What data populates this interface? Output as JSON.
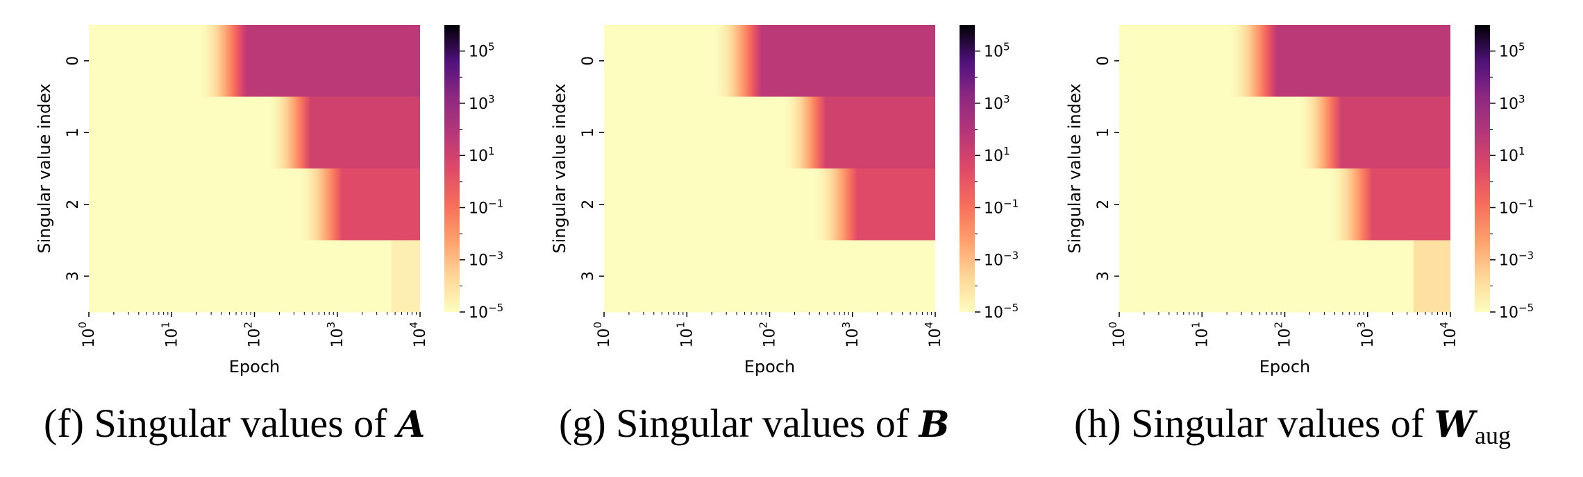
{
  "chart_data": [
    {
      "type": "heatmap",
      "caption": "(f) Singular values of ",
      "caption_symbol": "A",
      "caption_subscript": "",
      "xlabel": "Epoch",
      "ylabel": "Singular value index",
      "x_scale": "log",
      "xlim": [
        1,
        10000
      ],
      "x_ticks": [
        {
          "base": "10",
          "exp": "0"
        },
        {
          "base": "10",
          "exp": "1"
        },
        {
          "base": "10",
          "exp": "2"
        },
        {
          "base": "10",
          "exp": "3"
        },
        {
          "base": "10",
          "exp": "4"
        }
      ],
      "y_ticks": [
        "0",
        "1",
        "2",
        "3"
      ],
      "colormap": "magma_r",
      "color_scale": "log",
      "color_range": [
        1e-05,
        1000000
      ],
      "colorbar_ticks": [
        {
          "base": "10",
          "exp": "5",
          "value": 100000
        },
        {
          "base": "10",
          "exp": "3",
          "value": 1000
        },
        {
          "base": "10",
          "exp": "1",
          "value": 10
        },
        {
          "base": "10",
          "exp": "−1",
          "value": 0.1
        },
        {
          "base": "10",
          "exp": "−3",
          "value": 0.001
        },
        {
          "base": "10",
          "exp": "−5",
          "value": 1e-05
        }
      ],
      "rows": [
        {
          "index": 0,
          "initial": 1e-05,
          "transition_start_epoch": 22,
          "transition_end_epoch": 80,
          "final": 50,
          "late_value": 50,
          "late_epoch": null
        },
        {
          "index": 1,
          "initial": 1e-05,
          "transition_start_epoch": 150,
          "transition_end_epoch": 480,
          "final": 10,
          "late_value": 10,
          "late_epoch": null
        },
        {
          "index": 2,
          "initial": 1e-05,
          "transition_start_epoch": 350,
          "transition_end_epoch": 1150,
          "final": 3,
          "late_value": 3,
          "late_epoch": null
        },
        {
          "index": 3,
          "initial": 1e-05,
          "transition_start_epoch": null,
          "transition_end_epoch": null,
          "final": 1e-05,
          "late_value": 3e-05,
          "late_epoch": 4500
        }
      ]
    },
    {
      "type": "heatmap",
      "caption": "(g) Singular values of ",
      "caption_symbol": "B",
      "caption_subscript": "",
      "xlabel": "Epoch",
      "ylabel": "Singular value index",
      "x_scale": "log",
      "xlim": [
        1,
        10000
      ],
      "x_ticks": [
        {
          "base": "10",
          "exp": "0"
        },
        {
          "base": "10",
          "exp": "1"
        },
        {
          "base": "10",
          "exp": "2"
        },
        {
          "base": "10",
          "exp": "3"
        },
        {
          "base": "10",
          "exp": "4"
        }
      ],
      "y_ticks": [
        "0",
        "1",
        "2",
        "3"
      ],
      "colormap": "magma_r",
      "color_scale": "log",
      "color_range": [
        1e-05,
        1000000
      ],
      "colorbar_ticks": [
        {
          "base": "10",
          "exp": "5",
          "value": 100000
        },
        {
          "base": "10",
          "exp": "3",
          "value": 1000
        },
        {
          "base": "10",
          "exp": "1",
          "value": 10
        },
        {
          "base": "10",
          "exp": "−1",
          "value": 0.1
        },
        {
          "base": "10",
          "exp": "−3",
          "value": 0.001
        },
        {
          "base": "10",
          "exp": "−5",
          "value": 1e-05
        }
      ],
      "rows": [
        {
          "index": 0,
          "initial": 1e-05,
          "transition_start_epoch": 22,
          "transition_end_epoch": 80,
          "final": 50,
          "late_value": 50,
          "late_epoch": null
        },
        {
          "index": 1,
          "initial": 1e-05,
          "transition_start_epoch": 150,
          "transition_end_epoch": 480,
          "final": 10,
          "late_value": 10,
          "late_epoch": null
        },
        {
          "index": 2,
          "initial": 1e-05,
          "transition_start_epoch": 350,
          "transition_end_epoch": 1150,
          "final": 3,
          "late_value": 3,
          "late_epoch": null
        },
        {
          "index": 3,
          "initial": 1e-05,
          "transition_start_epoch": null,
          "transition_end_epoch": null,
          "final": 1e-05,
          "late_value": 1e-05,
          "late_epoch": null
        }
      ]
    },
    {
      "type": "heatmap",
      "caption": "(h) Singular values of ",
      "caption_symbol": "W",
      "caption_subscript": "aug",
      "xlabel": "Epoch",
      "ylabel": "Singular value index",
      "x_scale": "log",
      "xlim": [
        1,
        10000
      ],
      "x_ticks": [
        {
          "base": "10",
          "exp": "0"
        },
        {
          "base": "10",
          "exp": "1"
        },
        {
          "base": "10",
          "exp": "2"
        },
        {
          "base": "10",
          "exp": "3"
        },
        {
          "base": "10",
          "exp": "4"
        }
      ],
      "y_ticks": [
        "0",
        "1",
        "2",
        "3"
      ],
      "colormap": "magma_r",
      "color_scale": "log",
      "color_range": [
        1e-05,
        1000000
      ],
      "colorbar_ticks": [
        {
          "base": "10",
          "exp": "5",
          "value": 100000
        },
        {
          "base": "10",
          "exp": "3",
          "value": 1000
        },
        {
          "base": "10",
          "exp": "1",
          "value": 10
        },
        {
          "base": "10",
          "exp": "−1",
          "value": 0.1
        },
        {
          "base": "10",
          "exp": "−3",
          "value": 0.001
        },
        {
          "base": "10",
          "exp": "−5",
          "value": 1e-05
        }
      ],
      "rows": [
        {
          "index": 0,
          "initial": 1e-05,
          "transition_start_epoch": 22,
          "transition_end_epoch": 80,
          "final": 50,
          "late_value": 50,
          "late_epoch": null
        },
        {
          "index": 1,
          "initial": 1e-05,
          "transition_start_epoch": 150,
          "transition_end_epoch": 480,
          "final": 10,
          "late_value": 10,
          "late_epoch": null
        },
        {
          "index": 2,
          "initial": 1e-05,
          "transition_start_epoch": 350,
          "transition_end_epoch": 1150,
          "final": 3,
          "late_value": 3,
          "late_epoch": null
        },
        {
          "index": 3,
          "initial": 1e-05,
          "transition_start_epoch": null,
          "transition_end_epoch": null,
          "final": 1e-05,
          "late_value": 0.0001,
          "late_epoch": 3600
        }
      ]
    }
  ]
}
